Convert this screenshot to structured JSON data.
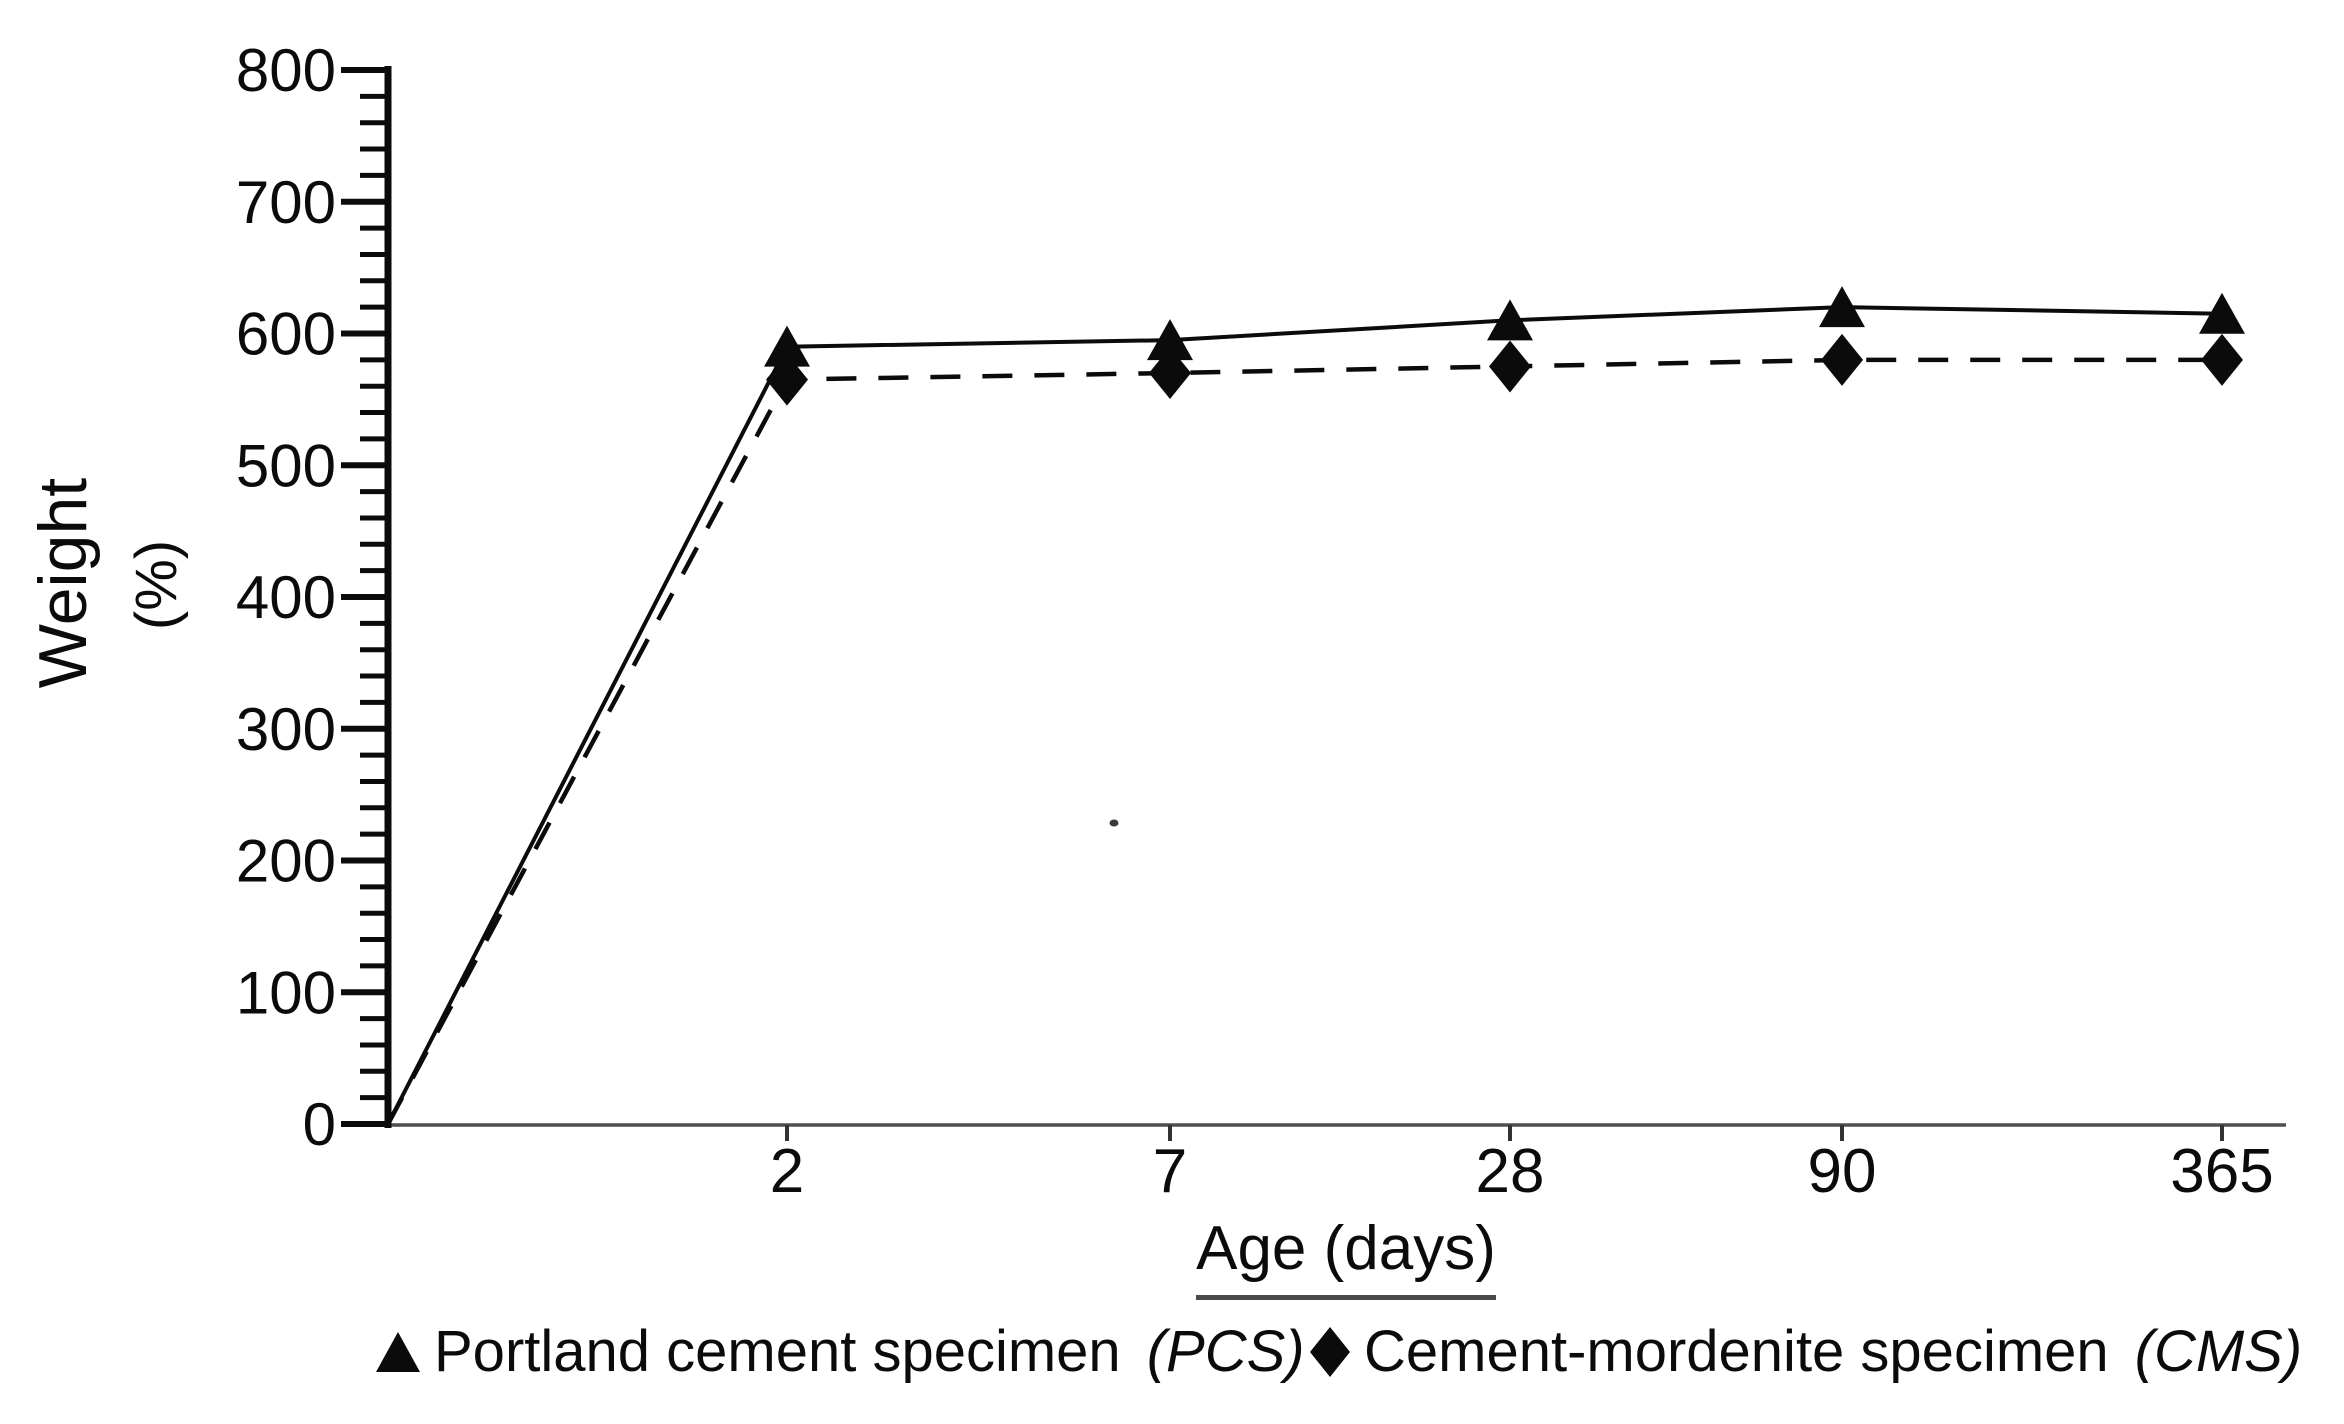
{
  "chart_data": {
    "type": "line",
    "title": "",
    "xlabel": "Age (days)",
    "ylabel": "Weight (%)",
    "ylabel_line1": "Weight",
    "ylabel_line2": "(%)",
    "categories": [
      2,
      7,
      28,
      90,
      365
    ],
    "x_tick_labels": [
      "2",
      "7",
      "28",
      "90",
      "365"
    ],
    "y_ticks": [
      0,
      100,
      200,
      300,
      400,
      500,
      600,
      700,
      800
    ],
    "ylim": [
      0,
      800
    ],
    "y_minor_step": 20,
    "grid": false,
    "legend_position": "bottom",
    "lines_start_at_origin": true,
    "origin_value": 0,
    "series": [
      {
        "name": "Portland cement specimen",
        "abbr": "(PCS)",
        "marker": "triangle",
        "line_style": "solid",
        "values": [
          590,
          595,
          610,
          620,
          615
        ]
      },
      {
        "name": "Cement-mordenite specimen",
        "abbr": "(CMS)",
        "marker": "diamond",
        "line_style": "dashed",
        "values": [
          565,
          570,
          575,
          580,
          580
        ]
      }
    ],
    "colors": {
      "series": "#0b0b0b",
      "y_axis": "#0b0b0b",
      "x_axis": "#4f4f4f",
      "text": "#0b0b0b"
    }
  }
}
